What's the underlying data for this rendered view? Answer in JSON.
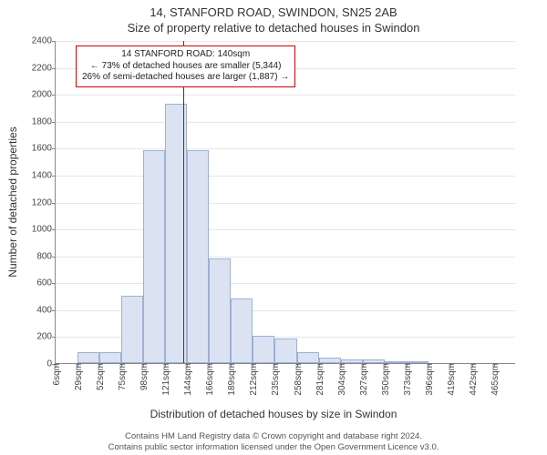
{
  "title_line1": "14, STANFORD ROAD, SWINDON, SN25 2AB",
  "title_line2": "Size of property relative to detached houses in Swindon",
  "y_axis_label": "Number of detached properties",
  "x_axis_label": "Distribution of detached houses by size in Swindon",
  "footer_line1": "Contains HM Land Registry data © Crown copyright and database right 2024.",
  "footer_line2": "Contains public sector information licensed under the Open Government Licence v3.0.",
  "chart": {
    "type": "histogram",
    "background_color": "#ffffff",
    "grid_color": "#e6e6e6",
    "axis_color": "#888888",
    "bar_fill": "#dbe3f3",
    "bar_border": "#9fb0d6",
    "bar_width_ratio": 1.0,
    "ylim": [
      0,
      2400
    ],
    "ytick_step": 200,
    "x_bin_start": 6,
    "x_bin_width": 23,
    "x_bin_count": 21,
    "x_tick_labels": [
      "6sqm",
      "29sqm",
      "52sqm",
      "75sqm",
      "98sqm",
      "121sqm",
      "144sqm",
      "166sqm",
      "189sqm",
      "212sqm",
      "235sqm",
      "258sqm",
      "281sqm",
      "304sqm",
      "327sqm",
      "350sqm",
      "373sqm",
      "396sqm",
      "419sqm",
      "442sqm",
      "465sqm"
    ],
    "values": [
      0,
      80,
      80,
      500,
      1580,
      1930,
      1580,
      780,
      480,
      200,
      180,
      80,
      40,
      30,
      30,
      10,
      10,
      0,
      0,
      0,
      0
    ],
    "title_fontsize": 13,
    "label_fontsize": 12,
    "tick_fontsize": 10
  },
  "reference_line": {
    "value_sqm": 140,
    "color": "#cc0000",
    "width": 1
  },
  "annotation": {
    "border_color": "#cc0000",
    "line1": "14 STANFORD ROAD: 140sqm",
    "line2": "← 73% of detached houses are smaller (5,344)",
    "line3": "26% of semi-detached houses are larger (1,887) →"
  }
}
